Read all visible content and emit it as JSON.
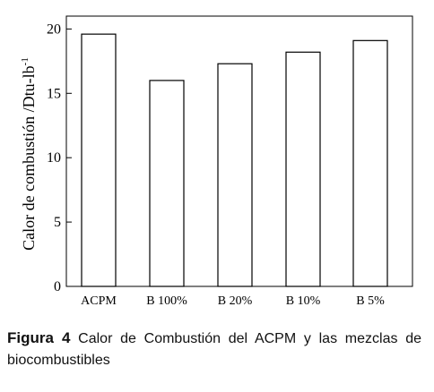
{
  "chart_data": {
    "type": "bar",
    "categories": [
      "ACPM",
      "B 100%",
      "B 20%",
      "B 10%",
      "B 5%"
    ],
    "values": [
      19.6,
      16.0,
      17.3,
      18.2,
      19.1
    ],
    "ylabel": "Calor de combustión /Dtu-lb",
    "ylabel_superscript": "-1",
    "xlabel": "",
    "ylim": [
      0,
      21
    ],
    "yticks": [
      0,
      5,
      10,
      15,
      20
    ],
    "grid": false,
    "bar_color": "#ffffff",
    "stroke_color": "#000000"
  },
  "caption": {
    "label": "Figura 4",
    "text": "Calor de Combustión del ACPM y las mezclas de biocombustibles"
  }
}
